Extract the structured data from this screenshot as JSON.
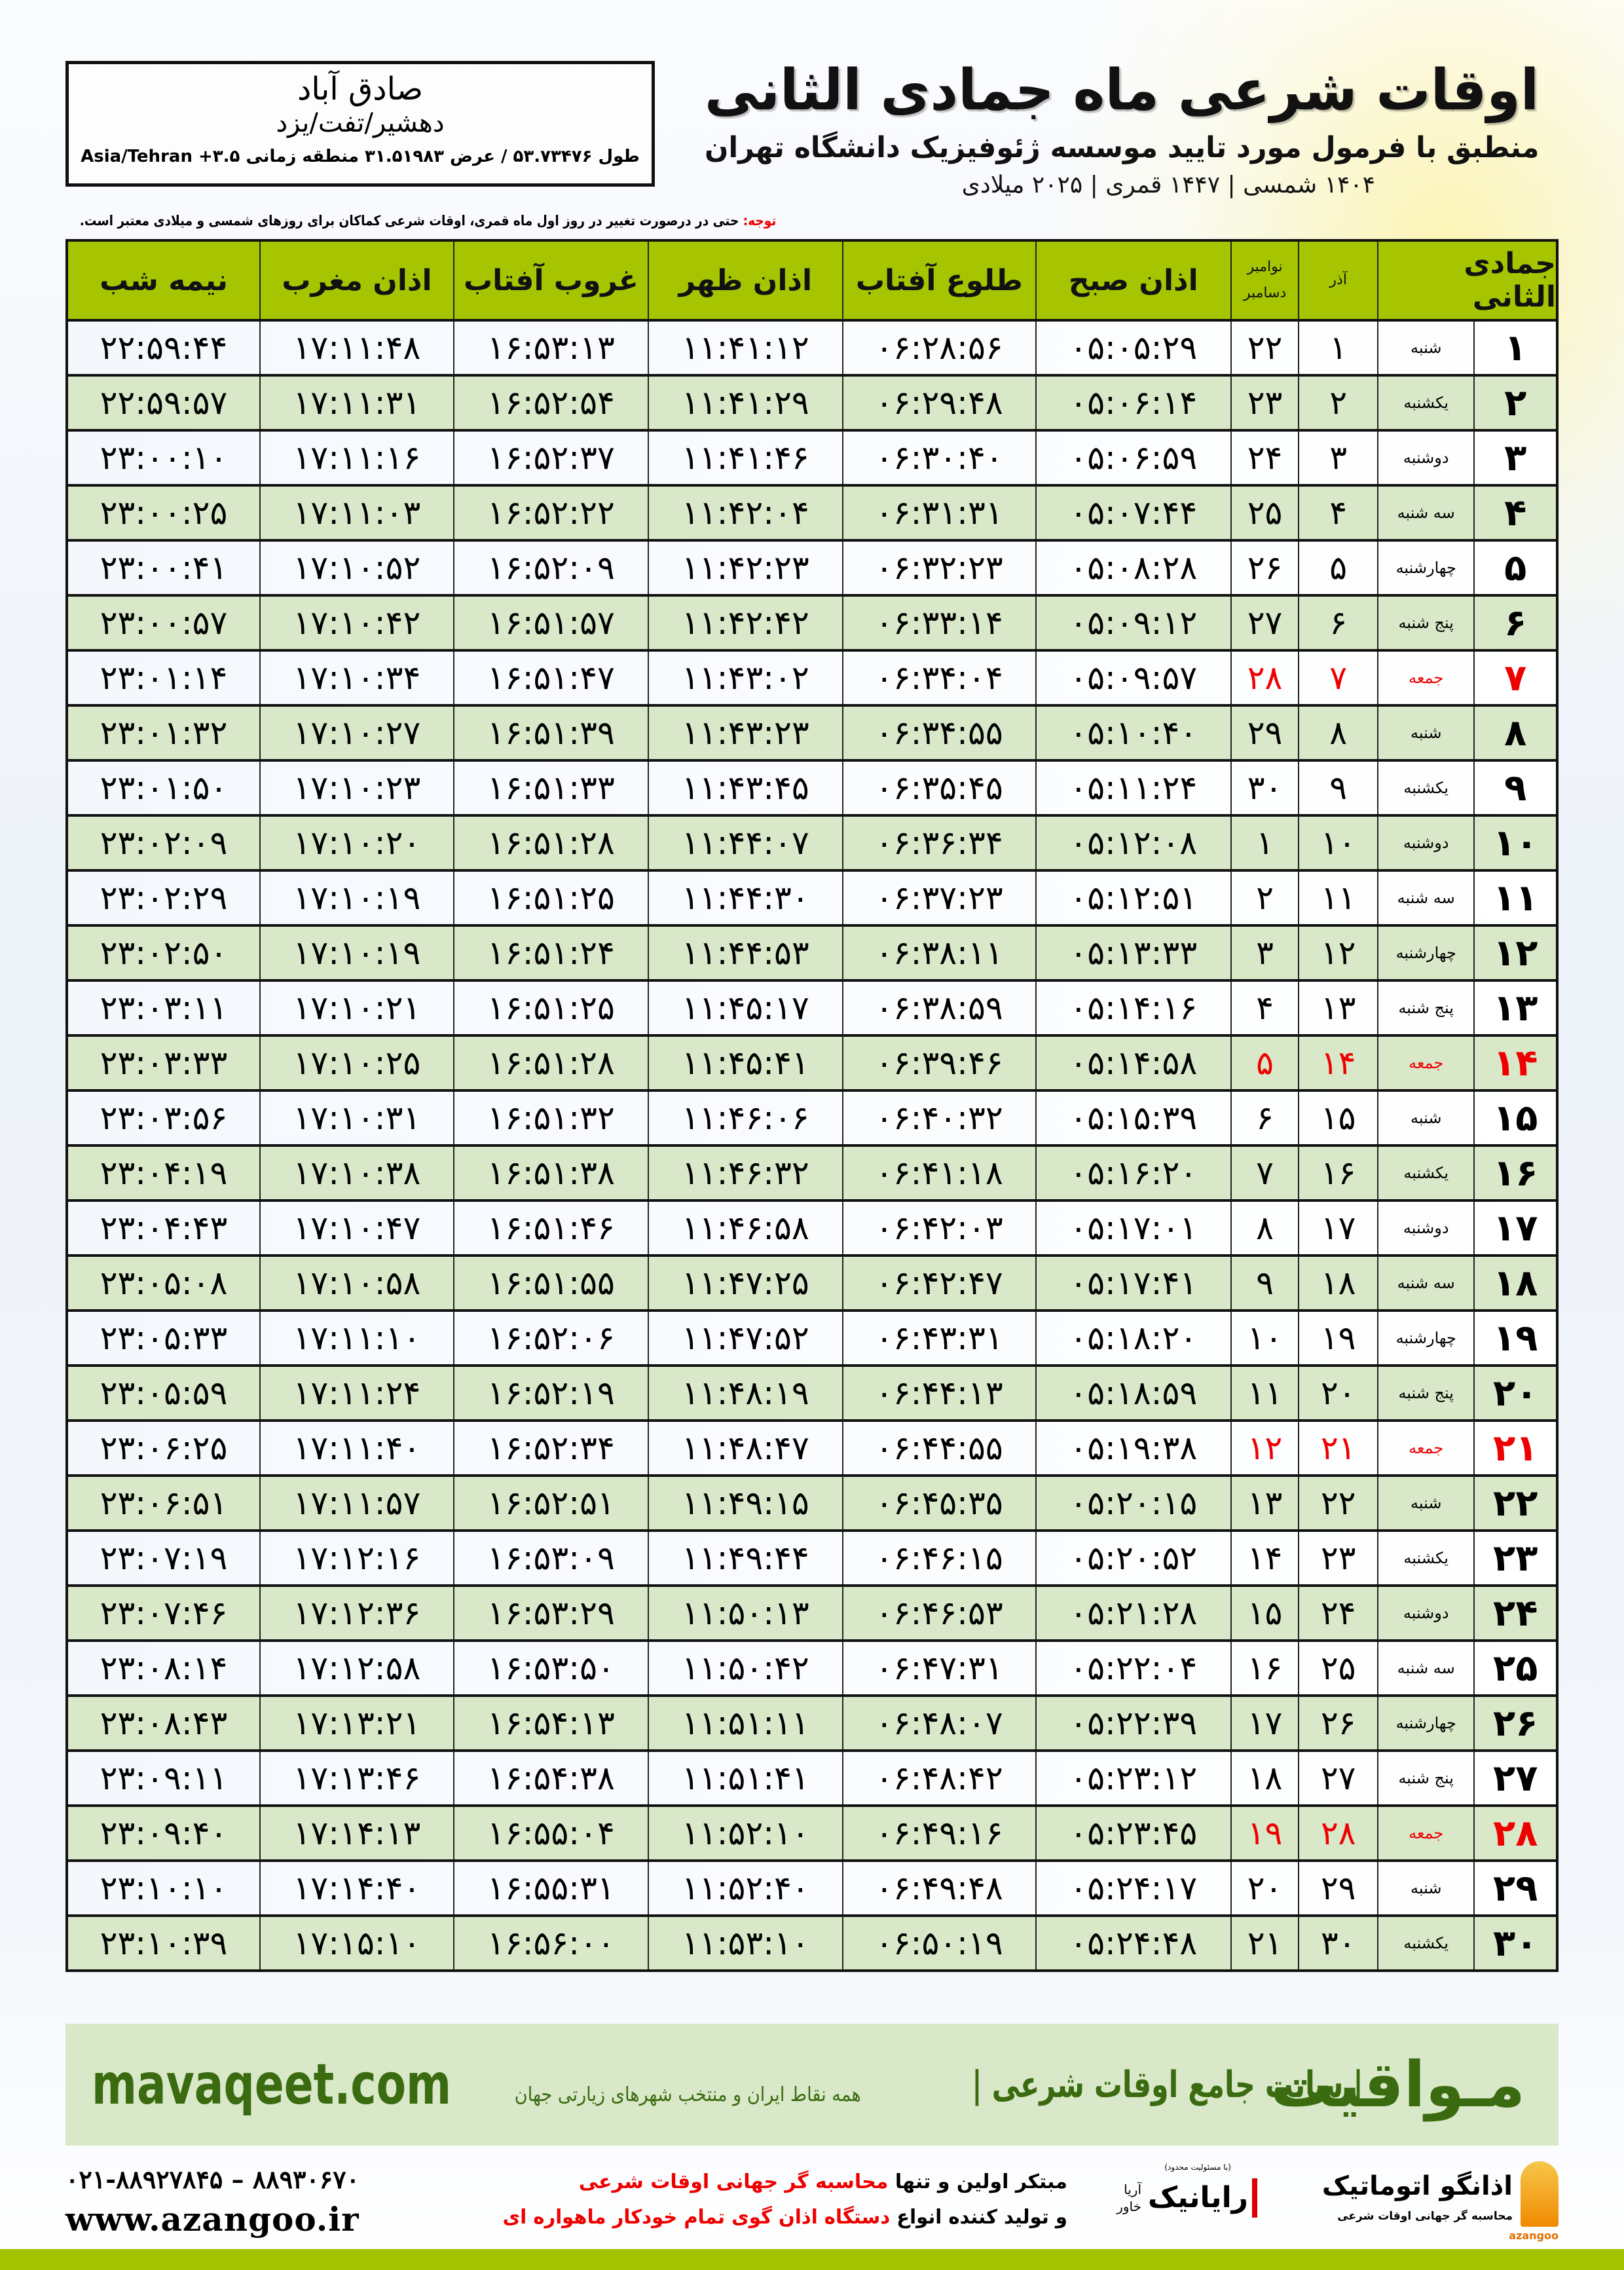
{
  "header": {
    "title": "اوقات شرعی ماه جمادی الثانی",
    "subtitle": "منطبق با فرمول مورد تایید موسسه ژئوفیزیک دانشگاه تهران",
    "dates": "۱۴۰۴ شمسی | ۱۴۴۷ قمری | ۲۰۲۵ میلادی"
  },
  "location": {
    "name": "صادق آباد",
    "region": "دهشیر/تفت/یزد",
    "coords": "طول ۵۳.۷۳۴۷۶ / عرض ۳۱.۵۱۹۸۳ منطقه زمانی ۳.۵+ Asia/Tehran"
  },
  "note": {
    "label": "توجه:",
    "text": " حتی در درصورت تغییر در روز اول ماه قمری، اوقات شرعی کماکان برای روزهای شمسی و میلادی معتبر است."
  },
  "colors": {
    "header_green": "#a6c400",
    "row_green": "#d9e8c8",
    "holiday_red": "#e00000",
    "brand_green": "#3b6b10"
  },
  "table": {
    "headers": {
      "hijri": "جمادی الثانی",
      "azar": "آذر",
      "nov": "نوامبر",
      "dec": "دسامبر",
      "fajr": "اذان صبح",
      "sunrise": "طلوع آفتاب",
      "zuhr": "اذان ظهر",
      "sunset": "غروب آفتاب",
      "maghrib": "اذان مغرب",
      "midnight": "نیمه شب"
    },
    "rows": [
      {
        "hijri": "۱",
        "weekday": "شنبه",
        "azar": "۱",
        "greg": "۲۲",
        "fajr": "۰۵:۰۵:۲۹",
        "sunrise": "۰۶:۲۸:۵۶",
        "zuhr": "۱۱:۴۱:۱۲",
        "sunset": "۱۶:۵۳:۱۳",
        "maghrib": "۱۷:۱۱:۴۸",
        "midnight": "۲۲:۵۹:۴۴",
        "holiday": false
      },
      {
        "hijri": "۲",
        "weekday": "یکشنبه",
        "azar": "۲",
        "greg": "۲۳",
        "fajr": "۰۵:۰۶:۱۴",
        "sunrise": "۰۶:۲۹:۴۸",
        "zuhr": "۱۱:۴۱:۲۹",
        "sunset": "۱۶:۵۲:۵۴",
        "maghrib": "۱۷:۱۱:۳۱",
        "midnight": "۲۲:۵۹:۵۷",
        "holiday": false
      },
      {
        "hijri": "۳",
        "weekday": "دوشنبه",
        "azar": "۳",
        "greg": "۲۴",
        "fajr": "۰۵:۰۶:۵۹",
        "sunrise": "۰۶:۳۰:۴۰",
        "zuhr": "۱۱:۴۱:۴۶",
        "sunset": "۱۶:۵۲:۳۷",
        "maghrib": "۱۷:۱۱:۱۶",
        "midnight": "۲۳:۰۰:۱۰",
        "holiday": false
      },
      {
        "hijri": "۴",
        "weekday": "سه شنبه",
        "azar": "۴",
        "greg": "۲۵",
        "fajr": "۰۵:۰۷:۴۴",
        "sunrise": "۰۶:۳۱:۳۱",
        "zuhr": "۱۱:۴۲:۰۴",
        "sunset": "۱۶:۵۲:۲۲",
        "maghrib": "۱۷:۱۱:۰۳",
        "midnight": "۲۳:۰۰:۲۵",
        "holiday": false
      },
      {
        "hijri": "۵",
        "weekday": "چهارشنبه",
        "azar": "۵",
        "greg": "۲۶",
        "fajr": "۰۵:۰۸:۲۸",
        "sunrise": "۰۶:۳۲:۲۳",
        "zuhr": "۱۱:۴۲:۲۳",
        "sunset": "۱۶:۵۲:۰۹",
        "maghrib": "۱۷:۱۰:۵۲",
        "midnight": "۲۳:۰۰:۴۱",
        "holiday": false
      },
      {
        "hijri": "۶",
        "weekday": "پنج شنبه",
        "azar": "۶",
        "greg": "۲۷",
        "fajr": "۰۵:۰۹:۱۲",
        "sunrise": "۰۶:۳۳:۱۴",
        "zuhr": "۱۱:۴۲:۴۲",
        "sunset": "۱۶:۵۱:۵۷",
        "maghrib": "۱۷:۱۰:۴۲",
        "midnight": "۲۳:۰۰:۵۷",
        "holiday": false
      },
      {
        "hijri": "۷",
        "weekday": "جمعه",
        "azar": "۷",
        "greg": "۲۸",
        "fajr": "۰۵:۰۹:۵۷",
        "sunrise": "۰۶:۳۴:۰۴",
        "zuhr": "۱۱:۴۳:۰۲",
        "sunset": "۱۶:۵۱:۴۷",
        "maghrib": "۱۷:۱۰:۳۴",
        "midnight": "۲۳:۰۱:۱۴",
        "holiday": true
      },
      {
        "hijri": "۸",
        "weekday": "شنبه",
        "azar": "۸",
        "greg": "۲۹",
        "fajr": "۰۵:۱۰:۴۰",
        "sunrise": "۰۶:۳۴:۵۵",
        "zuhr": "۱۱:۴۳:۲۳",
        "sunset": "۱۶:۵۱:۳۹",
        "maghrib": "۱۷:۱۰:۲۷",
        "midnight": "۲۳:۰۱:۳۲",
        "holiday": false
      },
      {
        "hijri": "۹",
        "weekday": "یکشنبه",
        "azar": "۹",
        "greg": "۳۰",
        "fajr": "۰۵:۱۱:۲۴",
        "sunrise": "۰۶:۳۵:۴۵",
        "zuhr": "۱۱:۴۳:۴۵",
        "sunset": "۱۶:۵۱:۳۳",
        "maghrib": "۱۷:۱۰:۲۳",
        "midnight": "۲۳:۰۱:۵۰",
        "holiday": false
      },
      {
        "hijri": "۱۰",
        "weekday": "دوشنبه",
        "azar": "۱۰",
        "greg": "۱",
        "fajr": "۰۵:۱۲:۰۸",
        "sunrise": "۰۶:۳۶:۳۴",
        "zuhr": "۱۱:۴۴:۰۷",
        "sunset": "۱۶:۵۱:۲۸",
        "maghrib": "۱۷:۱۰:۲۰",
        "midnight": "۲۳:۰۲:۰۹",
        "holiday": false
      },
      {
        "hijri": "۱۱",
        "weekday": "سه شنبه",
        "azar": "۱۱",
        "greg": "۲",
        "fajr": "۰۵:۱۲:۵۱",
        "sunrise": "۰۶:۳۷:۲۳",
        "zuhr": "۱۱:۴۴:۳۰",
        "sunset": "۱۶:۵۱:۲۵",
        "maghrib": "۱۷:۱۰:۱۹",
        "midnight": "۲۳:۰۲:۲۹",
        "holiday": false
      },
      {
        "hijri": "۱۲",
        "weekday": "چهارشنبه",
        "azar": "۱۲",
        "greg": "۳",
        "fajr": "۰۵:۱۳:۳۳",
        "sunrise": "۰۶:۳۸:۱۱",
        "zuhr": "۱۱:۴۴:۵۳",
        "sunset": "۱۶:۵۱:۲۴",
        "maghrib": "۱۷:۱۰:۱۹",
        "midnight": "۲۳:۰۲:۵۰",
        "holiday": false
      },
      {
        "hijri": "۱۳",
        "weekday": "پنج شنبه",
        "azar": "۱۳",
        "greg": "۴",
        "fajr": "۰۵:۱۴:۱۶",
        "sunrise": "۰۶:۳۸:۵۹",
        "zuhr": "۱۱:۴۵:۱۷",
        "sunset": "۱۶:۵۱:۲۵",
        "maghrib": "۱۷:۱۰:۲۱",
        "midnight": "۲۳:۰۳:۱۱",
        "holiday": false
      },
      {
        "hijri": "۱۴",
        "weekday": "جمعه",
        "azar": "۱۴",
        "greg": "۵",
        "fajr": "۰۵:۱۴:۵۸",
        "sunrise": "۰۶:۳۹:۴۶",
        "zuhr": "۱۱:۴۵:۴۱",
        "sunset": "۱۶:۵۱:۲۸",
        "maghrib": "۱۷:۱۰:۲۵",
        "midnight": "۲۳:۰۳:۳۳",
        "holiday": true
      },
      {
        "hijri": "۱۵",
        "weekday": "شنبه",
        "azar": "۱۵",
        "greg": "۶",
        "fajr": "۰۵:۱۵:۳۹",
        "sunrise": "۰۶:۴۰:۳۲",
        "zuhr": "۱۱:۴۶:۰۶",
        "sunset": "۱۶:۵۱:۳۲",
        "maghrib": "۱۷:۱۰:۳۱",
        "midnight": "۲۳:۰۳:۵۶",
        "holiday": false
      },
      {
        "hijri": "۱۶",
        "weekday": "یکشنبه",
        "azar": "۱۶",
        "greg": "۷",
        "fajr": "۰۵:۱۶:۲۰",
        "sunrise": "۰۶:۴۱:۱۸",
        "zuhr": "۱۱:۴۶:۳۲",
        "sunset": "۱۶:۵۱:۳۸",
        "maghrib": "۱۷:۱۰:۳۸",
        "midnight": "۲۳:۰۴:۱۹",
        "holiday": false
      },
      {
        "hijri": "۱۷",
        "weekday": "دوشنبه",
        "azar": "۱۷",
        "greg": "۸",
        "fajr": "۰۵:۱۷:۰۱",
        "sunrise": "۰۶:۴۲:۰۳",
        "zuhr": "۱۱:۴۶:۵۸",
        "sunset": "۱۶:۵۱:۴۶",
        "maghrib": "۱۷:۱۰:۴۷",
        "midnight": "۲۳:۰۴:۴۳",
        "holiday": false
      },
      {
        "hijri": "۱۸",
        "weekday": "سه شنبه",
        "azar": "۱۸",
        "greg": "۹",
        "fajr": "۰۵:۱۷:۴۱",
        "sunrise": "۰۶:۴۲:۴۷",
        "zuhr": "۱۱:۴۷:۲۵",
        "sunset": "۱۶:۵۱:۵۵",
        "maghrib": "۱۷:۱۰:۵۸",
        "midnight": "۲۳:۰۵:۰۸",
        "holiday": false
      },
      {
        "hijri": "۱۹",
        "weekday": "چهارشنبه",
        "azar": "۱۹",
        "greg": "۱۰",
        "fajr": "۰۵:۱۸:۲۰",
        "sunrise": "۰۶:۴۳:۳۱",
        "zuhr": "۱۱:۴۷:۵۲",
        "sunset": "۱۶:۵۲:۰۶",
        "maghrib": "۱۷:۱۱:۱۰",
        "midnight": "۲۳:۰۵:۳۳",
        "holiday": false
      },
      {
        "hijri": "۲۰",
        "weekday": "پنج شنبه",
        "azar": "۲۰",
        "greg": "۱۱",
        "fajr": "۰۵:۱۸:۵۹",
        "sunrise": "۰۶:۴۴:۱۳",
        "zuhr": "۱۱:۴۸:۱۹",
        "sunset": "۱۶:۵۲:۱۹",
        "maghrib": "۱۷:۱۱:۲۴",
        "midnight": "۲۳:۰۵:۵۹",
        "holiday": false
      },
      {
        "hijri": "۲۱",
        "weekday": "جمعه",
        "azar": "۲۱",
        "greg": "۱۲",
        "fajr": "۰۵:۱۹:۳۸",
        "sunrise": "۰۶:۴۴:۵۵",
        "zuhr": "۱۱:۴۸:۴۷",
        "sunset": "۱۶:۵۲:۳۴",
        "maghrib": "۱۷:۱۱:۴۰",
        "midnight": "۲۳:۰۶:۲۵",
        "holiday": true
      },
      {
        "hijri": "۲۲",
        "weekday": "شنبه",
        "azar": "۲۲",
        "greg": "۱۳",
        "fajr": "۰۵:۲۰:۱۵",
        "sunrise": "۰۶:۴۵:۳۵",
        "zuhr": "۱۱:۴۹:۱۵",
        "sunset": "۱۶:۵۲:۵۱",
        "maghrib": "۱۷:۱۱:۵۷",
        "midnight": "۲۳:۰۶:۵۱",
        "holiday": false
      },
      {
        "hijri": "۲۳",
        "weekday": "یکشنبه",
        "azar": "۲۳",
        "greg": "۱۴",
        "fajr": "۰۵:۲۰:۵۲",
        "sunrise": "۰۶:۴۶:۱۵",
        "zuhr": "۱۱:۴۹:۴۴",
        "sunset": "۱۶:۵۳:۰۹",
        "maghrib": "۱۷:۱۲:۱۶",
        "midnight": "۲۳:۰۷:۱۹",
        "holiday": false
      },
      {
        "hijri": "۲۴",
        "weekday": "دوشنبه",
        "azar": "۲۴",
        "greg": "۱۵",
        "fajr": "۰۵:۲۱:۲۸",
        "sunrise": "۰۶:۴۶:۵۳",
        "zuhr": "۱۱:۵۰:۱۳",
        "sunset": "۱۶:۵۳:۲۹",
        "maghrib": "۱۷:۱۲:۳۶",
        "midnight": "۲۳:۰۷:۴۶",
        "holiday": false
      },
      {
        "hijri": "۲۵",
        "weekday": "سه شنبه",
        "azar": "۲۵",
        "greg": "۱۶",
        "fajr": "۰۵:۲۲:۰۴",
        "sunrise": "۰۶:۴۷:۳۱",
        "zuhr": "۱۱:۵۰:۴۲",
        "sunset": "۱۶:۵۳:۵۰",
        "maghrib": "۱۷:۱۲:۵۸",
        "midnight": "۲۳:۰۸:۱۴",
        "holiday": false
      },
      {
        "hijri": "۲۶",
        "weekday": "چهارشنبه",
        "azar": "۲۶",
        "greg": "۱۷",
        "fajr": "۰۵:۲۲:۳۹",
        "sunrise": "۰۶:۴۸:۰۷",
        "zuhr": "۱۱:۵۱:۱۱",
        "sunset": "۱۶:۵۴:۱۳",
        "maghrib": "۱۷:۱۳:۲۱",
        "midnight": "۲۳:۰۸:۴۳",
        "holiday": false
      },
      {
        "hijri": "۲۷",
        "weekday": "پنج شنبه",
        "azar": "۲۷",
        "greg": "۱۸",
        "fajr": "۰۵:۲۳:۱۲",
        "sunrise": "۰۶:۴۸:۴۲",
        "zuhr": "۱۱:۵۱:۴۱",
        "sunset": "۱۶:۵۴:۳۸",
        "maghrib": "۱۷:۱۳:۴۶",
        "midnight": "۲۳:۰۹:۱۱",
        "holiday": false
      },
      {
        "hijri": "۲۸",
        "weekday": "جمعه",
        "azar": "۲۸",
        "greg": "۱۹",
        "fajr": "۰۵:۲۳:۴۵",
        "sunrise": "۰۶:۴۹:۱۶",
        "zuhr": "۱۱:۵۲:۱۰",
        "sunset": "۱۶:۵۵:۰۴",
        "maghrib": "۱۷:۱۴:۱۳",
        "midnight": "۲۳:۰۹:۴۰",
        "holiday": true
      },
      {
        "hijri": "۲۹",
        "weekday": "شنبه",
        "azar": "۲۹",
        "greg": "۲۰",
        "fajr": "۰۵:۲۴:۱۷",
        "sunrise": "۰۶:۴۹:۴۸",
        "zuhr": "۱۱:۵۲:۴۰",
        "sunset": "۱۶:۵۵:۳۱",
        "maghrib": "۱۷:۱۴:۴۰",
        "midnight": "۲۳:۱۰:۱۰",
        "holiday": false
      },
      {
        "hijri": "۳۰",
        "weekday": "یکشنبه",
        "azar": "۳۰",
        "greg": "۲۱",
        "fajr": "۰۵:۲۴:۴۸",
        "sunrise": "۰۶:۵۰:۱۹",
        "zuhr": "۱۱:۵۳:۱۰",
        "sunset": "۱۶:۵۶:۰۰",
        "maghrib": "۱۷:۱۵:۱۰",
        "midnight": "۲۳:۱۰:۳۹",
        "holiday": false
      }
    ]
  },
  "banner": {
    "brand": "مـواقیت",
    "tagline": "| سایت جامع اوقات شرعی |",
    "sub": "همه نقاط ایران و منتخب شهرهای زیارتی جهان",
    "url": "mavaqeet.com"
  },
  "footer": {
    "logo1_name": "اذانگو اتوماتیک",
    "logo1_sub": "محاسبه گر جهانی اوقات شرعی",
    "logo1_latin": "azangoo",
    "logo2_name": "رایانیک",
    "logo2_khavar": "خاور",
    "logo2_arya": "آریا",
    "logo2_ltd": "(با مسئولیت محدود)",
    "promo1_a": "مبتکر اولین و تنها ",
    "promo1_b": "محاسبه گر جهانی اوقات شرعی",
    "promo2_a": "و تولید کننده انواع ",
    "promo2_b": "دستگاه اذان گوی تمام خودکار ماهواره ای",
    "phone": "۰۲۱-۸۸۹۲۷۸۴۵ – ۸۸۹۳۰۶۷۰",
    "website": "www.azangoo.ir"
  }
}
